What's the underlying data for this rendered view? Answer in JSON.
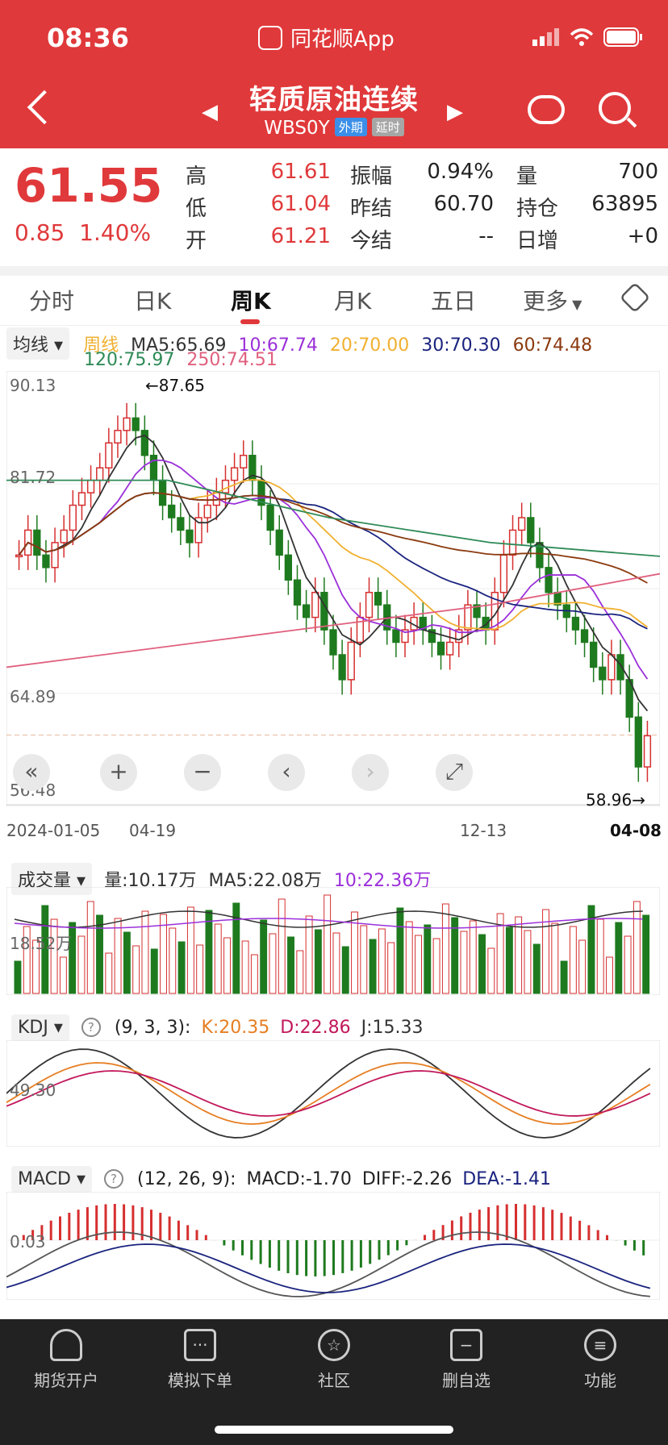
{
  "status": {
    "time": "08:36",
    "app": "同花顺App"
  },
  "header": {
    "title": "轻质原油连续",
    "code": "WBS0Y",
    "tag1": "外期",
    "tag2": "延时"
  },
  "quote": {
    "price": "61.55",
    "change": "0.85",
    "change_pct": "1.40%",
    "high_label": "高",
    "high": "61.61",
    "low_label": "低",
    "low": "61.04",
    "open_label": "开",
    "open": "61.21",
    "amp_label": "振幅",
    "amp": "0.94%",
    "prev_label": "昨结",
    "prev": "60.70",
    "today_label": "今结",
    "today": "--",
    "vol_label": "量",
    "vol": "700",
    "oi_label": "持仓",
    "oi": "63895",
    "inc_label": "日增",
    "inc": "+0"
  },
  "tabs": [
    "分时",
    "日K",
    "周K",
    "月K",
    "五日",
    "更多"
  ],
  "ma": {
    "selector": "均线",
    "period": "周线",
    "ma5": "MA5:65.69",
    "ma10": "10:67.74",
    "ma20": "20:70.00",
    "ma30": "30:70.30",
    "ma60": "60:74.48",
    "ma120": "120:75.97",
    "ma250": "250:74.51"
  },
  "colors": {
    "brand": "#e0393b",
    "up": "#d62f2f",
    "down": "#1e7a1e",
    "ma5": "#333333",
    "ma10": "#9b30d9",
    "ma20": "#f0b030",
    "ma30": "#1a237e",
    "ma60": "#8b3a0f",
    "ma120": "#2e8b57",
    "ma250": "#e0607e"
  },
  "axis": {
    "y_top": "90.13",
    "y_mid1": "81.72",
    "y_mid2": "64.89",
    "y_bottom": "56.48",
    "max_label": "←87.65",
    "min_label": "58.96→",
    "date_start": "2024-01-05",
    "date_2": "04-19",
    "date_3": "12-13",
    "date_end": "04-08"
  },
  "volume": {
    "selector": "成交量",
    "vol": "量:10.17万",
    "ma5": "MA5:22.08万",
    "ma10": "10:22.36万",
    "axis": "18.52万"
  },
  "kdj": {
    "selector": "KDJ",
    "params": "(9, 3, 3):",
    "k": "K:20.35",
    "d": "D:22.86",
    "j": "J:15.33",
    "axis": "49.30"
  },
  "macd": {
    "selector": "MACD",
    "params": "(12, 26, 9):",
    "macd": "MACD:-1.70",
    "diff": "DIFF:-2.26",
    "dea": "DEA:-1.41",
    "axis": "0.03"
  },
  "nav": [
    "期货开户",
    "模拟下单",
    "社区",
    "删自选",
    "功能"
  ],
  "chart_data": {
    "type": "candlestick",
    "period": "weekly",
    "ylim": [
      56.48,
      90.13
    ],
    "high": 87.65,
    "low": 58.96,
    "last": 61.55,
    "x_ticks": [
      "2024-01-05",
      "04-19",
      "12-13",
      "04-08"
    ]
  }
}
